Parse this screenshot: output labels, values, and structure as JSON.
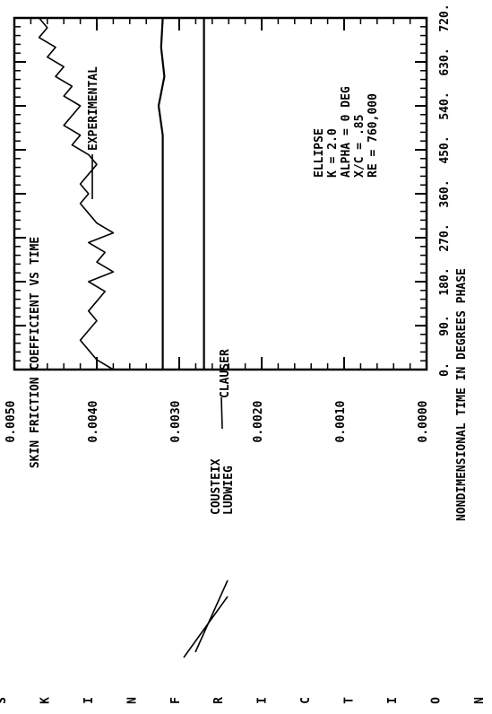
{
  "chart_data": {
    "type": "line",
    "title": "SKIN FRICTION COEFFICIENT VS TIME",
    "xlabel": "NONDIMENSIONAL TIME IN DEGREES PHASE",
    "ylabel": "SKIN FRICTION COEFF",
    "xlim": [
      0,
      720
    ],
    "ylim": [
      0.0,
      0.005
    ],
    "x_ticks": [
      "0.",
      "90.",
      "180.",
      "270.",
      "360.",
      "450.",
      "540.",
      "630.",
      "720."
    ],
    "y_ticks": [
      "0.0000",
      "0.0010",
      "0.0020",
      "0.0030",
      "0.0040",
      "0.0050"
    ],
    "grid": false,
    "series": [
      {
        "name": "EXPERIMENTAL",
        "x": [
          0,
          20,
          40,
          60,
          80,
          100,
          120,
          140,
          160,
          180,
          200,
          220,
          240,
          260,
          280,
          300,
          320,
          340,
          360,
          380,
          400,
          420,
          440,
          460,
          480,
          500,
          520,
          540,
          560,
          580,
          600,
          620,
          640,
          660,
          680,
          700,
          720
        ],
        "y": [
          0.0038,
          0.004,
          0.0041,
          0.0042,
          0.0041,
          0.004,
          0.0041,
          0.004,
          0.0039,
          0.0041,
          0.0038,
          0.004,
          0.0039,
          0.0041,
          0.0038,
          0.004,
          0.0041,
          0.0042,
          0.0041,
          0.0042,
          0.0041,
          0.004,
          0.0041,
          0.0043,
          0.0042,
          0.0044,
          0.0043,
          0.0042,
          0.0044,
          0.0043,
          0.0045,
          0.0044,
          0.0046,
          0.0045,
          0.0047,
          0.0046,
          0.0047
        ]
      },
      {
        "name": "CLAUSER",
        "x": [
          0,
          60,
          120,
          180,
          240,
          300,
          360,
          420,
          480,
          540,
          600,
          660,
          720
        ],
        "y": [
          0.0032,
          0.0032,
          0.0032,
          0.0032,
          0.0032,
          0.0032,
          0.0032,
          0.0032,
          0.0032,
          0.00325,
          0.00318,
          0.00322,
          0.0032
        ]
      },
      {
        "name": "COUSTEIX LUDWIEG",
        "x": [
          0,
          60,
          120,
          180,
          240,
          300,
          360,
          420,
          480,
          540,
          600,
          660,
          720
        ],
        "y": [
          0.0027,
          0.0027,
          0.0027,
          0.0027,
          0.0027,
          0.0027,
          0.0027,
          0.0027,
          0.0027,
          0.0027,
          0.0027,
          0.0027,
          0.0027
        ]
      }
    ],
    "annotations": {
      "experimental": "EXPERIMENTAL",
      "clauser": "CLAUSER",
      "cousteix_1": "COUSTEIX",
      "cousteix_2": "LUDWIEG",
      "params": [
        "ELLIPSE",
        "K = 2.0",
        "ALPHA = 0 DEG",
        "X/C = .85",
        "RE = 760,000"
      ]
    }
  }
}
